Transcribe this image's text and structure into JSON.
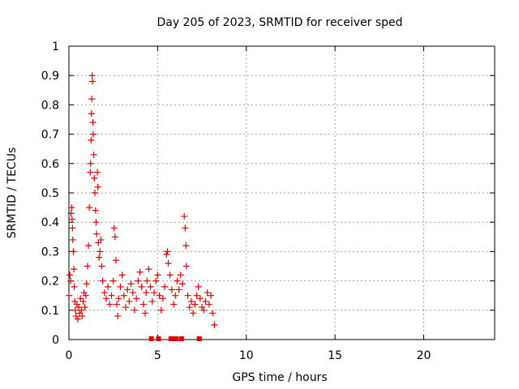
{
  "chart_data": {
    "type": "scatter",
    "title": "Day 205 of 2023, SRMTID for receiver sped",
    "xlabel": "GPS time / hours",
    "ylabel": "SRMTID / TECUs",
    "xlim": [
      0,
      24
    ],
    "ylim": [
      0,
      1
    ],
    "xticks": [
      0,
      5,
      10,
      15,
      20
    ],
    "xtick_labels": [
      "0",
      "5",
      "10",
      "15",
      "20"
    ],
    "yticks": [
      0,
      0.1,
      0.2,
      0.3,
      0.4,
      0.5,
      0.6,
      0.7,
      0.8,
      0.9,
      1
    ],
    "ytick_labels": [
      "0",
      "0.1",
      "0.2",
      "0.3",
      "0.4",
      "0.5",
      "0.6",
      "0.7",
      "0.8",
      "0.9",
      "1"
    ],
    "grid": true,
    "marker": "+",
    "series": [
      {
        "name": "sped",
        "color": "#e00000",
        "points": [
          [
            0.0,
            0.15
          ],
          [
            0.05,
            0.22
          ],
          [
            0.1,
            0.2
          ],
          [
            0.12,
            0.43
          ],
          [
            0.15,
            0.45
          ],
          [
            0.18,
            0.41
          ],
          [
            0.2,
            0.38
          ],
          [
            0.22,
            0.34
          ],
          [
            0.25,
            0.3
          ],
          [
            0.28,
            0.24
          ],
          [
            0.3,
            0.18
          ],
          [
            0.33,
            0.13
          ],
          [
            0.36,
            0.1
          ],
          [
            0.4,
            0.08
          ],
          [
            0.45,
            0.12
          ],
          [
            0.5,
            0.07
          ],
          [
            0.55,
            0.11
          ],
          [
            0.6,
            0.09
          ],
          [
            0.65,
            0.14
          ],
          [
            0.7,
            0.1
          ],
          [
            0.75,
            0.08
          ],
          [
            0.8,
            0.13
          ],
          [
            0.85,
            0.16
          ],
          [
            0.9,
            0.11
          ],
          [
            0.95,
            0.15
          ],
          [
            1.0,
            0.19
          ],
          [
            1.05,
            0.25
          ],
          [
            1.1,
            0.32
          ],
          [
            1.15,
            0.45
          ],
          [
            1.2,
            0.57
          ],
          [
            1.22,
            0.6
          ],
          [
            1.25,
            0.68
          ],
          [
            1.27,
            0.77
          ],
          [
            1.29,
            0.82
          ],
          [
            1.31,
            0.9
          ],
          [
            1.33,
            0.88
          ],
          [
            1.35,
            0.74
          ],
          [
            1.37,
            0.7
          ],
          [
            1.4,
            0.63
          ],
          [
            1.43,
            0.55
          ],
          [
            1.46,
            0.5
          ],
          [
            1.5,
            0.44
          ],
          [
            1.53,
            0.4
          ],
          [
            1.56,
            0.36
          ],
          [
            1.6,
            0.57
          ],
          [
            1.63,
            0.52
          ],
          [
            1.66,
            0.33
          ],
          [
            1.7,
            0.28
          ],
          [
            1.75,
            0.3
          ],
          [
            1.8,
            0.34
          ],
          [
            1.85,
            0.25
          ],
          [
            1.9,
            0.2
          ],
          [
            2.0,
            0.16
          ],
          [
            2.1,
            0.14
          ],
          [
            2.2,
            0.18
          ],
          [
            2.3,
            0.12
          ],
          [
            2.4,
            0.15
          ],
          [
            2.5,
            0.2
          ],
          [
            2.55,
            0.38
          ],
          [
            2.6,
            0.35
          ],
          [
            2.65,
            0.27
          ],
          [
            2.7,
            0.12
          ],
          [
            2.75,
            0.08
          ],
          [
            2.8,
            0.14
          ],
          [
            2.9,
            0.18
          ],
          [
            3.0,
            0.22
          ],
          [
            3.1,
            0.15
          ],
          [
            3.2,
            0.11
          ],
          [
            3.3,
            0.17
          ],
          [
            3.4,
            0.13
          ],
          [
            3.5,
            0.19
          ],
          [
            3.6,
            0.16
          ],
          [
            3.7,
            0.1
          ],
          [
            3.8,
            0.14
          ],
          [
            3.9,
            0.2
          ],
          [
            4.0,
            0.23
          ],
          [
            4.1,
            0.18
          ],
          [
            4.2,
            0.12
          ],
          [
            4.3,
            0.09
          ],
          [
            4.35,
            0.16
          ],
          [
            4.4,
            0.2
          ],
          [
            4.5,
            0.24
          ],
          [
            4.6,
            0.18
          ],
          [
            4.65,
            0.0
          ],
          [
            4.7,
            0.13
          ],
          [
            4.8,
            0.16
          ],
          [
            4.9,
            0.2
          ],
          [
            5.0,
            0.22
          ],
          [
            5.05,
            0.0
          ],
          [
            5.1,
            0.15
          ],
          [
            5.2,
            0.1
          ],
          [
            5.3,
            0.14
          ],
          [
            5.4,
            0.18
          ],
          [
            5.5,
            0.29
          ],
          [
            5.55,
            0.3
          ],
          [
            5.6,
            0.26
          ],
          [
            5.7,
            0.22
          ],
          [
            5.75,
            0.0
          ],
          [
            5.8,
            0.17
          ],
          [
            5.9,
            0.12
          ],
          [
            5.95,
            0.0
          ],
          [
            6.0,
            0.15
          ],
          [
            6.05,
            0.0
          ],
          [
            6.1,
            0.2
          ],
          [
            6.2,
            0.17
          ],
          [
            6.3,
            0.22
          ],
          [
            6.35,
            0.0
          ],
          [
            6.4,
            0.19
          ],
          [
            6.5,
            0.42
          ],
          [
            6.55,
            0.38
          ],
          [
            6.6,
            0.32
          ],
          [
            6.62,
            0.25
          ],
          [
            6.7,
            0.15
          ],
          [
            6.8,
            0.11
          ],
          [
            6.9,
            0.13
          ],
          [
            7.0,
            0.09
          ],
          [
            7.1,
            0.12
          ],
          [
            7.2,
            0.15
          ],
          [
            7.3,
            0.18
          ],
          [
            7.35,
            0.0
          ],
          [
            7.4,
            0.14
          ],
          [
            7.5,
            0.11
          ],
          [
            7.6,
            0.1
          ],
          [
            7.7,
            0.13
          ],
          [
            7.8,
            0.16
          ],
          [
            7.9,
            0.12
          ],
          [
            8.0,
            0.15
          ],
          [
            8.1,
            0.09
          ],
          [
            8.2,
            0.05
          ]
        ]
      }
    ]
  }
}
